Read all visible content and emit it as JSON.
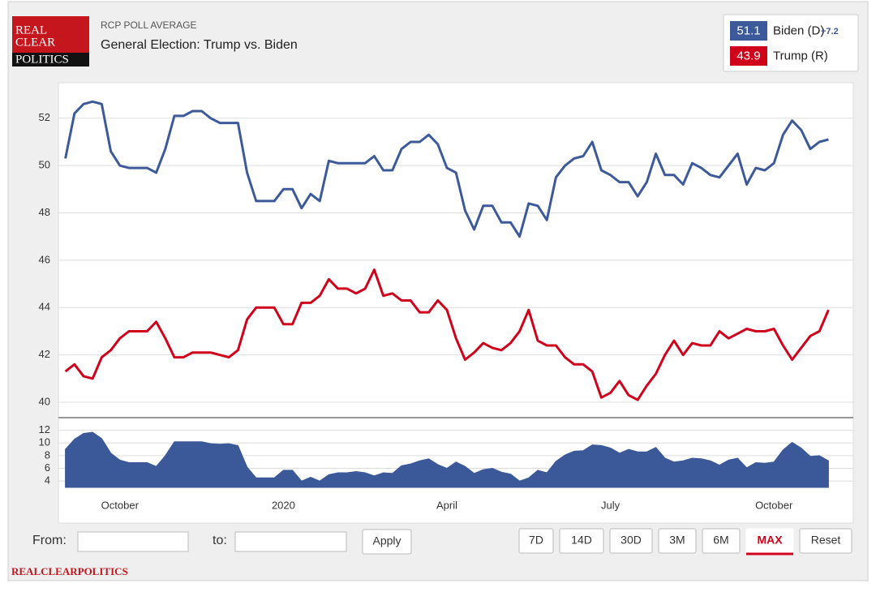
{
  "chart_data": {
    "type": "line",
    "supertitle": "RCP POLL AVERAGE",
    "title": "General Election: Trump vs. Biden",
    "logo": [
      "REAL",
      "CLEAR",
      "POLITICS"
    ],
    "footer": "REALCLEARPOLITICS",
    "categories": [
      null,
      null,
      null,
      null,
      null,
      null,
      "October",
      null,
      null,
      null,
      null,
      null,
      null,
      null,
      null,
      null,
      null,
      null,
      null,
      null,
      null,
      null,
      null,
      null,
      "2020",
      null,
      null,
      null,
      null,
      null,
      null,
      null,
      null,
      null,
      null,
      null,
      null,
      null,
      null,
      null,
      null,
      null,
      "April",
      null,
      null,
      null,
      null,
      null,
      null,
      null,
      null,
      null,
      null,
      null,
      null,
      null,
      null,
      null,
      null,
      null,
      "July",
      null,
      null,
      null,
      null,
      null,
      null,
      null,
      null,
      null,
      null,
      null,
      null,
      null,
      null,
      null,
      null,
      null,
      "October",
      null,
      null,
      null,
      null,
      null,
      null
    ],
    "series": [
      {
        "name": "Biden (D)",
        "color": "#3c5a9a",
        "latest": 51.1,
        "spread_label": "+7.2",
        "values": [
          50.3,
          52.2,
          52.6,
          52.7,
          52.6,
          50.6,
          50.0,
          49.9,
          49.9,
          49.9,
          49.7,
          50.7,
          52.1,
          52.1,
          52.3,
          52.3,
          52.0,
          51.8,
          51.8,
          51.8,
          49.7,
          48.5,
          48.5,
          48.5,
          49.0,
          49.0,
          48.2,
          48.8,
          48.5,
          50.2,
          50.1,
          50.1,
          50.1,
          50.1,
          50.4,
          49.8,
          49.8,
          50.7,
          51.0,
          51.0,
          51.3,
          50.9,
          49.9,
          49.7,
          48.1,
          47.3,
          48.3,
          48.3,
          47.6,
          47.6,
          47.0,
          48.4,
          48.3,
          47.7,
          49.5,
          50.0,
          50.3,
          50.4,
          51.0,
          49.8,
          49.6,
          49.3,
          49.3,
          48.7,
          49.3,
          50.5,
          49.6,
          49.6,
          49.2,
          50.1,
          49.9,
          49.6,
          49.5,
          50.0,
          50.5,
          49.2,
          49.9,
          49.8,
          50.1,
          51.3,
          51.9,
          51.5,
          50.7,
          51.0,
          51.1
        ]
      },
      {
        "name": "Trump (R)",
        "color": "#d0021b",
        "latest": 43.9,
        "values": [
          41.3,
          41.6,
          41.1,
          41.0,
          41.9,
          42.2,
          42.7,
          43.0,
          43.0,
          43.0,
          43.4,
          42.7,
          41.9,
          41.9,
          42.1,
          42.1,
          42.1,
          42.0,
          41.9,
          42.2,
          43.5,
          44.0,
          44.0,
          44.0,
          43.3,
          43.3,
          44.2,
          44.2,
          44.5,
          45.2,
          44.8,
          44.8,
          44.6,
          44.8,
          45.6,
          44.5,
          44.6,
          44.3,
          44.3,
          43.8,
          43.8,
          44.3,
          43.9,
          42.7,
          41.8,
          42.1,
          42.5,
          42.3,
          42.2,
          42.5,
          43.0,
          43.9,
          42.6,
          42.4,
          42.4,
          41.9,
          41.6,
          41.6,
          41.3,
          40.2,
          40.4,
          40.9,
          40.3,
          40.1,
          40.7,
          41.2,
          42.0,
          42.6,
          42.0,
          42.5,
          42.4,
          42.4,
          43.0,
          42.7,
          42.9,
          43.1,
          43.0,
          43.0,
          43.1,
          42.4,
          41.8,
          42.3,
          42.8,
          43.0,
          43.9
        ]
      },
      {
        "type": "area",
        "axis": "y2",
        "color": "#3b5998",
        "values": [
          9.0,
          10.6,
          11.5,
          11.7,
          10.7,
          8.4,
          7.3,
          6.9,
          6.9,
          6.9,
          6.3,
          8.0,
          10.2,
          10.2,
          10.2,
          10.2,
          9.9,
          9.8,
          9.9,
          9.6,
          6.2,
          4.5,
          4.5,
          4.5,
          5.7,
          5.7,
          4.0,
          4.6,
          4.0,
          5.0,
          5.3,
          5.3,
          5.5,
          5.3,
          4.8,
          5.3,
          5.2,
          6.4,
          6.7,
          7.2,
          7.5,
          6.6,
          6.0,
          7.0,
          6.3,
          5.2,
          5.8,
          6.0,
          5.4,
          5.1,
          4.0,
          4.5,
          5.7,
          5.3,
          7.1,
          8.1,
          8.7,
          8.8,
          9.7,
          9.6,
          9.2,
          8.4,
          9.0,
          8.6,
          8.6,
          9.3,
          7.6,
          7.0,
          7.2,
          7.6,
          7.5,
          7.2,
          6.5,
          7.3,
          7.6,
          6.1,
          6.9,
          6.8,
          7.0,
          8.9,
          10.1,
          9.2,
          7.9,
          8.0,
          7.2
        ]
      }
    ],
    "ylim": [
      39.35,
      53.5
    ],
    "yticks": [
      40,
      42,
      44,
      46,
      48,
      50,
      52
    ],
    "y2lim": [
      3,
      14
    ],
    "y2ticks": [
      4,
      6,
      8,
      10,
      12
    ],
    "grid": true
  },
  "controls": {
    "from_label": "From:",
    "to_label": "to:",
    "apply": "Apply",
    "ranges": [
      "7D",
      "14D",
      "30D",
      "3M",
      "6M",
      "MAX",
      "Reset"
    ],
    "active_range": 5
  }
}
